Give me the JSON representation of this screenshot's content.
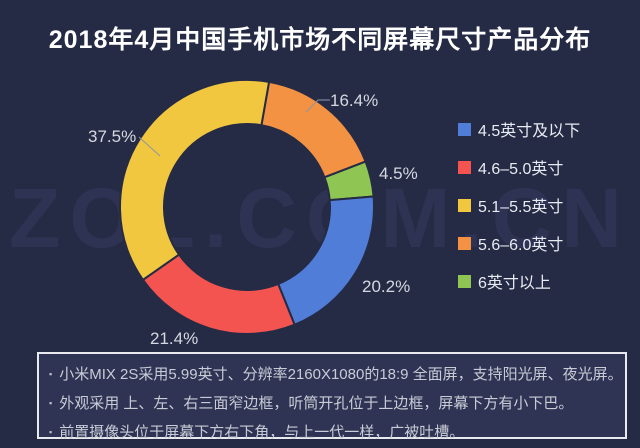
{
  "title": "2018年4月中国手机市场不同屏幕尺寸产品分布",
  "watermark": "ZOL.COM.CN",
  "colors": {
    "background": "#262B45",
    "panel_background": "#2F3454",
    "panel_border": "#E9EAEF",
    "label_text": "#D5D8E0",
    "blue": "#4F7DD8",
    "red": "#F35450",
    "yellow": "#F1C73F",
    "orange": "#F29242",
    "green": "#8FC653"
  },
  "chart_data": {
    "type": "pie",
    "donut": true,
    "title": "2018年4月中国手机市场不同屏幕尺寸产品分布",
    "start_angle_deg": 10,
    "legend_position": "right",
    "slices": [
      {
        "label": "5.6–6.0英寸",
        "value": 16.4,
        "pct_label": "16.4%",
        "color": "#F29242"
      },
      {
        "label": "6英寸以上",
        "value": 4.5,
        "pct_label": "4.5%",
        "color": "#8FC653"
      },
      {
        "label": "4.5英寸及以下",
        "value": 20.2,
        "pct_label": "20.2%",
        "color": "#4F7DD8"
      },
      {
        "label": "4.6–5.0英寸",
        "value": 21.4,
        "pct_label": "21.4%",
        "color": "#F35450"
      },
      {
        "label": "5.1–5.5英寸",
        "value": 37.5,
        "pct_label": "37.5%",
        "color": "#F1C73F"
      }
    ]
  },
  "legend": {
    "items": [
      {
        "label": "4.5英寸及以下",
        "color": "#4F7DD8"
      },
      {
        "label": "4.6–5.0英寸",
        "color": "#F35450"
      },
      {
        "label": "5.1–5.5英寸",
        "color": "#F1C73F"
      },
      {
        "label": "5.6–6.0英寸",
        "color": "#F29242"
      },
      {
        "label": "6英寸以上",
        "color": "#8FC653"
      }
    ]
  },
  "notes": {
    "items": [
      "小米MIX 2S采用5.99英寸、分辨率2160X1080的18:9 全面屏，支持阳光屏、夜光屏。",
      "外观采用 上、左、右三面窄边框，听筒开孔位于上边框，屏幕下方有小下巴。",
      "前置摄像头位于屏幕下方右下角，与上一代一样，广被吐槽。"
    ]
  }
}
